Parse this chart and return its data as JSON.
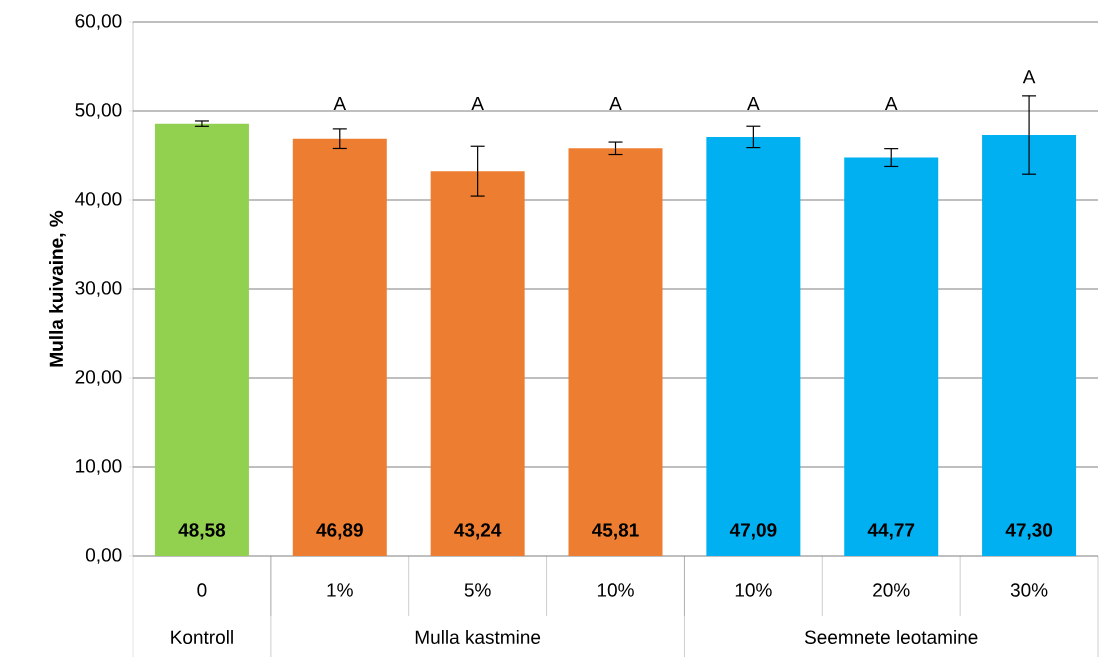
{
  "chart_data": {
    "type": "bar",
    "ylabel": "Mulla kuivaine, %",
    "categories": [
      "0",
      "1%",
      "5%",
      "10%",
      "10%",
      "20%",
      "30%"
    ],
    "values": [
      48.58,
      46.89,
      43.24,
      45.81,
      47.09,
      44.77,
      47.3
    ],
    "errors": [
      0.3,
      1.1,
      2.8,
      0.7,
      1.2,
      1.0,
      4.4
    ],
    "value_labels": [
      "48,58",
      "46,89",
      "43,24",
      "45,81",
      "47,09",
      "44,77",
      "47,30"
    ],
    "colors": [
      "#92d050",
      "#ed7d31",
      "#ed7d31",
      "#ed7d31",
      "#00b0f0",
      "#00b0f0",
      "#00b0f0"
    ],
    "ylim": [
      0,
      60
    ],
    "yticks": [
      {
        "value": 0,
        "label": "0,00"
      },
      {
        "value": 10,
        "label": "10,00"
      },
      {
        "value": 20,
        "label": "20,00"
      },
      {
        "value": 30,
        "label": "30,00"
      },
      {
        "value": 40,
        "label": "40,00"
      },
      {
        "value": 50,
        "label": "50,00"
      },
      {
        "value": 60,
        "label": "60,00"
      }
    ],
    "grid": "y",
    "annotations": [
      "A",
      "A",
      "A",
      "A",
      "A",
      "A",
      "Kontroll",
      "Mulla kastmine",
      "Seemnete leotamine"
    ]
  }
}
